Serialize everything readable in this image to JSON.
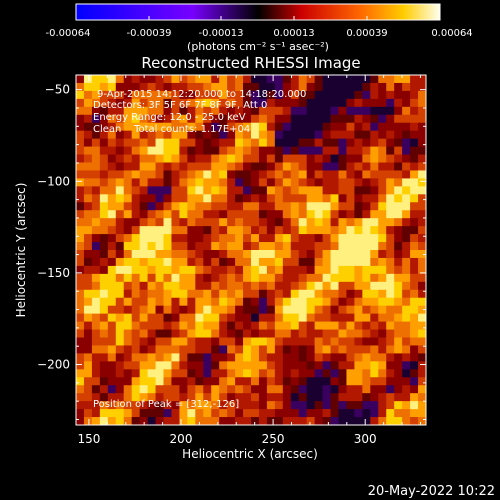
{
  "colorbar": {
    "tick_labels": [
      "-0.00064",
      "-0.00039",
      "-0.00013",
      "0.00013",
      "0.00039",
      "0.00064"
    ],
    "unit_label": "(photons cm⁻² s⁻¹ asec⁻²)",
    "range": [
      -0.00064,
      0.00064
    ]
  },
  "image": {
    "title": "Reconstructed RHESSI Image",
    "info_lines": [
      "9-Apr-2015 14:12:20.000 to 14:18:20.000",
      "Detectors: 3F 5F 6F 7F 8F 9F, Att 0",
      "Energy Range: 12.0 - 25.0 keV",
      "Clean    Total counts: 1.17E+04"
    ],
    "peak_label": "Position of Peak = [312,-126]",
    "xlabel": "Heliocentric X (arcsec)",
    "ylabel": "Heliocentric Y (arcsec)",
    "x_ticks": [
      "150",
      "200",
      "250",
      "300"
    ],
    "y_ticks": [
      "-50",
      "-100",
      "-150",
      "-200"
    ],
    "xlim": [
      143,
      333
    ],
    "ylim": [
      -233,
      -42
    ]
  },
  "footer": {
    "timestamp": "20-May-2022 10:22"
  }
}
